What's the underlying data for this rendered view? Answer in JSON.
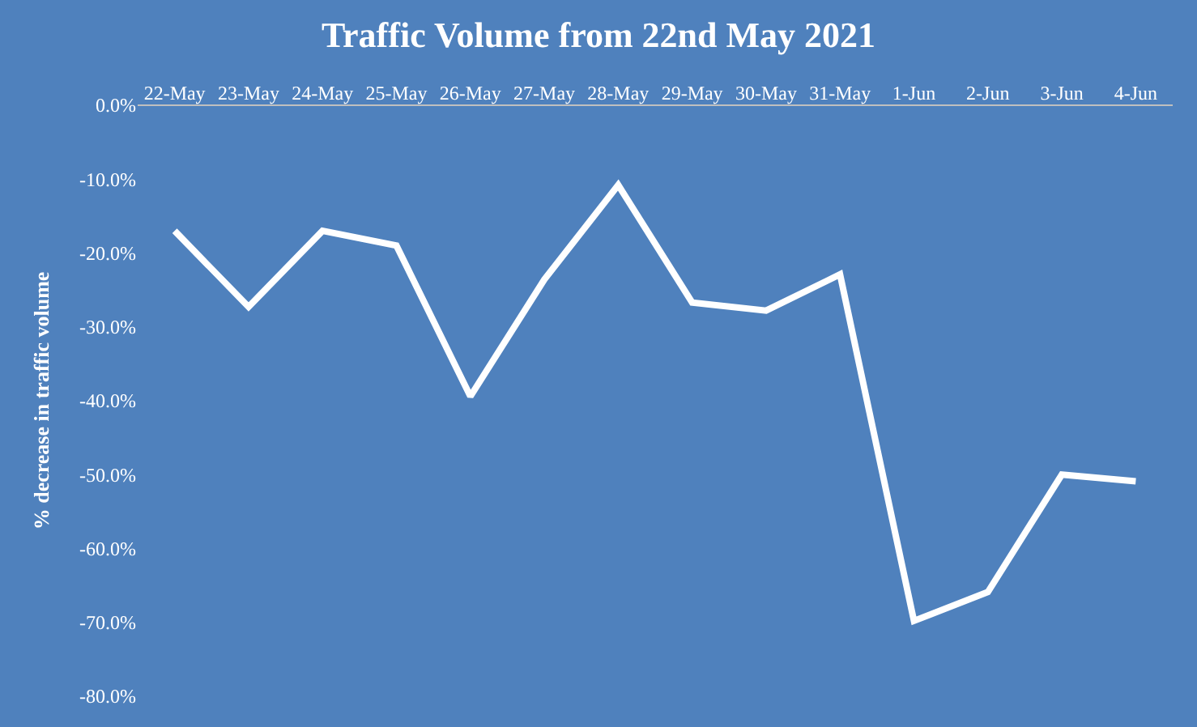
{
  "chart_data": {
    "type": "line",
    "title": "Traffic Volume from 22nd May 2021",
    "ylabel": "% decrease in traffic volume",
    "categories": [
      "22-May",
      "23-May",
      "24-May",
      "25-May",
      "26-May",
      "27-May",
      "28-May",
      "29-May",
      "30-May",
      "31-May",
      "1-Jun",
      "2-Jun",
      "3-Jun",
      "4-Jun"
    ],
    "series": [
      {
        "color": "#ffffff",
        "values": [
          -17.0,
          -27.3,
          -17.0,
          -19.0,
          -39.4,
          -23.6,
          -10.8,
          -26.7,
          -27.8,
          -22.9,
          -69.8,
          -65.9,
          -50.0,
          -50.9
        ]
      }
    ],
    "ylim": [
      -80,
      0
    ],
    "yticks": [
      {
        "value": 0,
        "label": "0.0%"
      },
      {
        "value": -10,
        "label": "-10.0%"
      },
      {
        "value": -20,
        "label": "-20.0%"
      },
      {
        "value": -30,
        "label": "-30.0%"
      },
      {
        "value": -40,
        "label": "-40.0%"
      },
      {
        "value": -50,
        "label": "-50.0%"
      },
      {
        "value": -60,
        "label": "-60.0%"
      },
      {
        "value": -70,
        "label": "-70.0%"
      },
      {
        "value": -80,
        "label": "-80.0%"
      }
    ],
    "grid": false,
    "marker": "none",
    "line_style": "solid"
  }
}
